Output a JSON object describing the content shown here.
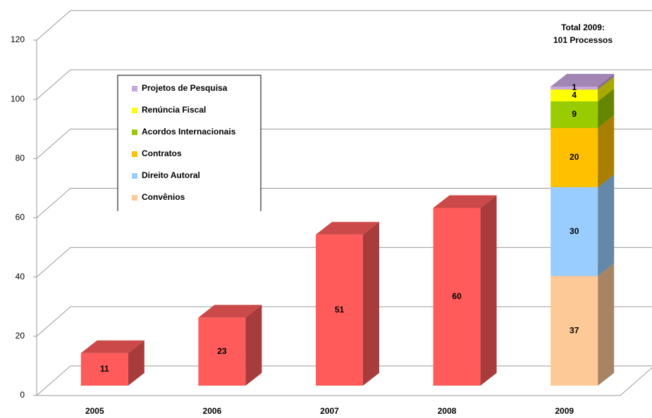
{
  "chart_data": {
    "type": "bar3d",
    "categories": [
      "2005",
      "2006",
      "2007",
      "2008",
      "2009"
    ],
    "series": [
      {
        "color": "#ff5b5b",
        "values": [
          11,
          23,
          51,
          60,
          null
        ]
      },
      {
        "name": "Convênios",
        "color": "#fdc997",
        "values": [
          null,
          null,
          null,
          null,
          37
        ]
      },
      {
        "name": "Direito Autoral",
        "color": "#99ccff",
        "values": [
          null,
          null,
          null,
          null,
          30
        ]
      },
      {
        "name": "Contratos",
        "color": "#ffc000",
        "values": [
          null,
          null,
          null,
          null,
          20
        ]
      },
      {
        "name": "Acordos Internacionais",
        "color": "#99cc00",
        "values": [
          null,
          null,
          null,
          null,
          9
        ]
      },
      {
        "name": "Renúncia Fiscal",
        "color": "#ffff00",
        "values": [
          null,
          null,
          null,
          null,
          4
        ]
      },
      {
        "name": "Projetos de Pesquisa",
        "color": "#c9a6e0",
        "values": [
          null,
          null,
          null,
          null,
          1
        ]
      }
    ],
    "stacked": true,
    "annotation": [
      "Total 2009:",
      "101 Processos"
    ],
    "ylim": [
      0,
      120
    ],
    "yticks": [
      0,
      20,
      40,
      60,
      80,
      100,
      120
    ],
    "grid": true
  }
}
